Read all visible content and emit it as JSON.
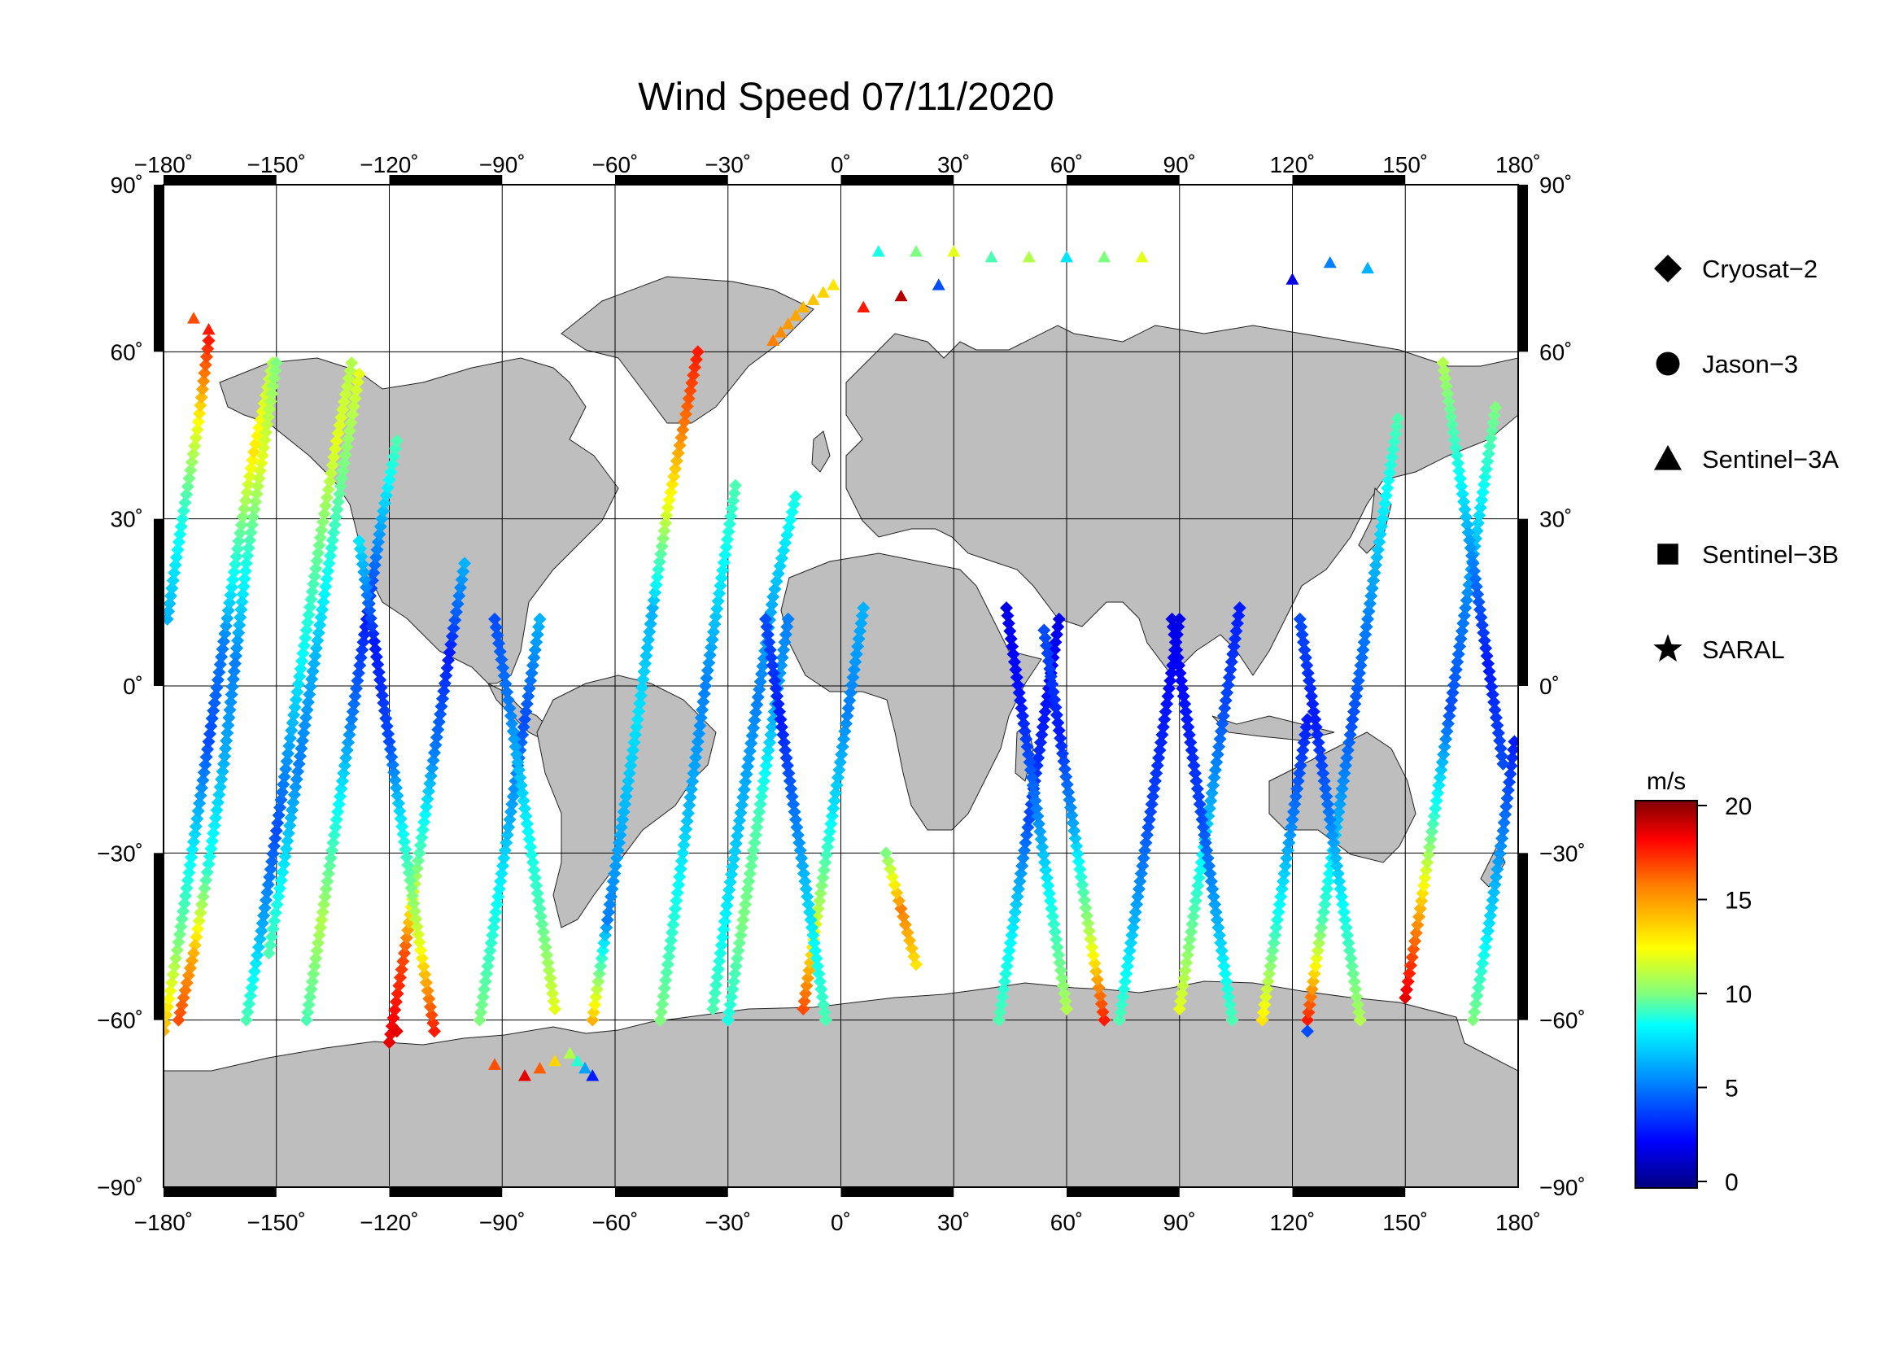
{
  "title": "Wind Speed 07/11/2020",
  "chart_data": {
    "type": "scatter",
    "projection": "equirectangular",
    "variable": "Wind Speed",
    "date": "07/11/2020",
    "x_axis": {
      "range": [
        -180,
        180
      ],
      "ticks": [
        -180,
        -150,
        -120,
        -90,
        -60,
        -30,
        0,
        30,
        60,
        90,
        120,
        150,
        180
      ],
      "tick_labels": [
        "−180˚",
        "−150˚",
        "−120˚",
        "−90˚",
        "−60˚",
        "−30˚",
        "0˚",
        "30˚",
        "60˚",
        "90˚",
        "120˚",
        "150˚",
        "180˚"
      ]
    },
    "y_axis": {
      "range": [
        -90,
        90
      ],
      "ticks": [
        90,
        60,
        30,
        0,
        -30,
        -60,
        -90
      ],
      "tick_labels": [
        "90˚",
        "60˚",
        "30˚",
        "0˚",
        "−30˚",
        "−60˚",
        "−90˚"
      ]
    },
    "grid": true,
    "colorbar": {
      "unit": "m/s",
      "range": [
        0,
        20
      ],
      "ticks": [
        20,
        15,
        10,
        5,
        0
      ],
      "tick_labels": [
        "20",
        "15",
        "10",
        "5",
        "0"
      ],
      "colormap": [
        "#00007f",
        "#0000ff",
        "#007fff",
        "#00ffff",
        "#7fff7f",
        "#ffff00",
        "#ff7f00",
        "#ff0000",
        "#7f0000"
      ]
    },
    "legend": {
      "placement": "right",
      "entries": [
        {
          "name": "Cryosat−2",
          "marker": "diamond"
        },
        {
          "name": "Jason−3",
          "marker": "circle"
        },
        {
          "name": "Sentinel−3A",
          "marker": "triangle"
        },
        {
          "name": "Sentinel−3B",
          "marker": "square"
        },
        {
          "name": "SARAL",
          "marker": "star"
        }
      ]
    },
    "tracks": [
      {
        "marker": "diamond",
        "points": [
          [
            -180,
            -62,
            14
          ],
          [
            -176,
            -46,
            10
          ],
          [
            -172,
            -28,
            7
          ],
          [
            -168,
            -10,
            4
          ],
          [
            -164,
            8,
            5
          ],
          [
            -160,
            26,
            9
          ],
          [
            -156,
            42,
            13
          ],
          [
            -151,
            58,
            11
          ]
        ]
      },
      {
        "marker": "diamond",
        "points": [
          [
            -179,
            12,
            6
          ],
          [
            -175,
            30,
            8
          ],
          [
            -171,
            46,
            12
          ],
          [
            -168,
            62,
            17
          ]
        ]
      },
      {
        "marker": "diamond",
        "points": [
          [
            -150,
            58,
            10
          ],
          [
            -154,
            40,
            12
          ],
          [
            -158,
            22,
            8
          ],
          [
            -161,
            4,
            5
          ],
          [
            -164,
            -14,
            6
          ],
          [
            -168,
            -32,
            8
          ],
          [
            -172,
            -48,
            14
          ],
          [
            -176,
            -60,
            16
          ]
        ]
      },
      {
        "marker": "diamond",
        "points": [
          [
            -158,
            -60,
            9
          ],
          [
            -154,
            -44,
            6
          ],
          [
            -150,
            -26,
            4
          ],
          [
            -146,
            -8,
            6
          ],
          [
            -142,
            10,
            8
          ],
          [
            -138,
            28,
            10
          ],
          [
            -134,
            44,
            12
          ],
          [
            -130,
            58,
            11
          ]
        ]
      },
      {
        "marker": "diamond",
        "points": [
          [
            -142,
            -60,
            9
          ],
          [
            -138,
            -42,
            11
          ],
          [
            -134,
            -24,
            8
          ],
          [
            -130,
            -6,
            5
          ],
          [
            -126,
            12,
            3
          ],
          [
            -122,
            30,
            6
          ],
          [
            -118,
            44,
            9
          ]
        ]
      },
      {
        "marker": "diamond",
        "points": [
          [
            -128,
            56,
            12
          ],
          [
            -132,
            40,
            10
          ],
          [
            -136,
            22,
            8
          ],
          [
            -140,
            4,
            6
          ],
          [
            -144,
            -14,
            5
          ],
          [
            -148,
            -32,
            7
          ],
          [
            -152,
            -48,
            9
          ]
        ]
      },
      {
        "marker": "diamond",
        "points": [
          [
            -120,
            -64,
            18
          ],
          [
            -116,
            -48,
            16
          ],
          [
            -112,
            -30,
            9
          ],
          [
            -108,
            -12,
            5
          ],
          [
            -104,
            6,
            3
          ],
          [
            -100,
            22,
            6
          ]
        ]
      },
      {
        "marker": "diamond",
        "points": [
          [
            -108,
            -62,
            17
          ],
          [
            -112,
            -46,
            12
          ],
          [
            -116,
            -28,
            8
          ],
          [
            -120,
            -10,
            4
          ],
          [
            -124,
            8,
            3
          ],
          [
            -128,
            26,
            7
          ]
        ]
      },
      {
        "marker": "diamond",
        "points": [
          [
            -96,
            -60,
            10
          ],
          [
            -92,
            -42,
            8
          ],
          [
            -88,
            -24,
            6
          ],
          [
            -84,
            -6,
            4
          ],
          [
            -80,
            12,
            6
          ]
        ]
      },
      {
        "marker": "diamond",
        "points": [
          [
            -76,
            -58,
            12
          ],
          [
            -80,
            -40,
            9
          ],
          [
            -84,
            -22,
            7
          ],
          [
            -88,
            -4,
            5
          ],
          [
            -92,
            12,
            4
          ]
        ]
      },
      {
        "marker": "diamond",
        "points": [
          [
            -66,
            -60,
            14
          ],
          [
            -62,
            -42,
            5
          ],
          [
            -58,
            -24,
            6
          ],
          [
            -54,
            -6,
            7
          ],
          [
            -50,
            14,
            6
          ],
          [
            -46,
            32,
            12
          ],
          [
            -42,
            46,
            15
          ],
          [
            -38,
            60,
            17
          ]
        ]
      },
      {
        "marker": "diamond",
        "points": [
          [
            -48,
            -60,
            10
          ],
          [
            -44,
            -40,
            8
          ],
          [
            -40,
            -20,
            6
          ],
          [
            -36,
            0,
            5
          ],
          [
            -32,
            18,
            7
          ],
          [
            -28,
            36,
            9
          ]
        ]
      },
      {
        "marker": "diamond",
        "points": [
          [
            -34,
            -58,
            9
          ],
          [
            -30,
            -38,
            7
          ],
          [
            -26,
            -20,
            6
          ],
          [
            -22,
            -2,
            5
          ],
          [
            -18,
            16,
            6
          ],
          [
            -12,
            34,
            8
          ]
        ]
      },
      {
        "marker": "diamond",
        "points": [
          [
            -30,
            -60,
            8
          ],
          [
            -26,
            -42,
            10
          ],
          [
            -22,
            -24,
            9
          ],
          [
            -18,
            -6,
            6
          ],
          [
            -14,
            12,
            5
          ]
        ]
      },
      {
        "marker": "diamond",
        "points": [
          [
            -10,
            -58,
            16
          ],
          [
            -6,
            -40,
            11
          ],
          [
            -2,
            -22,
            7
          ],
          [
            2,
            -4,
            5
          ],
          [
            6,
            14,
            6
          ]
        ]
      },
      {
        "marker": "diamond",
        "points": [
          [
            -4,
            -60,
            9
          ],
          [
            -8,
            -42,
            7
          ],
          [
            -12,
            -24,
            5
          ],
          [
            -16,
            -6,
            3
          ],
          [
            -20,
            12,
            4
          ]
        ]
      },
      {
        "marker": "diamond",
        "points": [
          [
            20,
            -50,
            13
          ],
          [
            16,
            -40,
            15
          ],
          [
            12,
            -30,
            10
          ]
        ]
      },
      {
        "marker": "diamond",
        "points": [
          [
            42,
            -60,
            9
          ],
          [
            46,
            -42,
            7
          ],
          [
            50,
            -24,
            4
          ],
          [
            54,
            -6,
            3
          ],
          [
            58,
            12,
            2
          ]
        ]
      },
      {
        "marker": "diamond",
        "points": [
          [
            60,
            -58,
            11
          ],
          [
            56,
            -40,
            8
          ],
          [
            52,
            -22,
            5
          ],
          [
            48,
            -4,
            3
          ],
          [
            44,
            14,
            2
          ]
        ]
      },
      {
        "marker": "diamond",
        "points": [
          [
            70,
            -60,
            17
          ],
          [
            66,
            -44,
            11
          ],
          [
            62,
            -26,
            6
          ],
          [
            58,
            -8,
            3
          ],
          [
            54,
            10,
            4
          ]
        ]
      },
      {
        "marker": "diamond",
        "points": [
          [
            74,
            -60,
            9
          ],
          [
            78,
            -42,
            6
          ],
          [
            82,
            -24,
            4
          ],
          [
            86,
            -6,
            3
          ],
          [
            90,
            12,
            2
          ]
        ]
      },
      {
        "marker": "diamond",
        "points": [
          [
            90,
            -58,
            12
          ],
          [
            94,
            -40,
            9
          ],
          [
            98,
            -22,
            6
          ],
          [
            102,
            -4,
            4
          ],
          [
            106,
            14,
            3
          ]
        ]
      },
      {
        "marker": "diamond",
        "points": [
          [
            104,
            -60,
            9
          ],
          [
            100,
            -42,
            6
          ],
          [
            96,
            -24,
            4
          ],
          [
            92,
            -6,
            3
          ],
          [
            88,
            12,
            2
          ]
        ]
      },
      {
        "marker": "diamond",
        "points": [
          [
            112,
            -60,
            13
          ],
          [
            116,
            -42,
            8
          ],
          [
            120,
            -24,
            5
          ],
          [
            124,
            -6,
            3
          ]
        ]
      },
      {
        "marker": "diamond",
        "points": [
          [
            124,
            -60,
            17
          ],
          [
            128,
            -42,
            9
          ],
          [
            132,
            -24,
            6
          ],
          [
            136,
            -6,
            4
          ],
          [
            140,
            12,
            5
          ],
          [
            144,
            30,
            7
          ],
          [
            148,
            48,
            9
          ]
        ]
      },
      {
        "marker": "diamond",
        "points": [
          [
            138,
            -60,
            11
          ],
          [
            134,
            -42,
            8
          ],
          [
            130,
            -24,
            5
          ],
          [
            126,
            -6,
            3
          ],
          [
            122,
            12,
            4
          ]
        ]
      },
      {
        "marker": "diamond",
        "points": [
          [
            150,
            -56,
            18
          ],
          [
            154,
            -40,
            14
          ],
          [
            158,
            -22,
            8
          ],
          [
            162,
            -4,
            4
          ],
          [
            166,
            14,
            5
          ],
          [
            170,
            32,
            7
          ],
          [
            174,
            50,
            10
          ]
        ]
      },
      {
        "marker": "diamond",
        "points": [
          [
            168,
            -60,
            10
          ],
          [
            172,
            -44,
            7
          ],
          [
            176,
            -26,
            5
          ],
          [
            179,
            -10,
            3
          ]
        ]
      },
      {
        "marker": "diamond",
        "points": [
          [
            160,
            58,
            11
          ],
          [
            164,
            40,
            8
          ],
          [
            168,
            22,
            5
          ],
          [
            172,
            4,
            3
          ],
          [
            176,
            -14,
            4
          ]
        ]
      },
      {
        "marker": "triangle",
        "points": [
          [
            -172,
            66,
            16
          ],
          [
            -168,
            64,
            17
          ]
        ]
      },
      {
        "marker": "triangle",
        "points": [
          [
            10,
            78,
            8
          ],
          [
            20,
            78,
            10
          ],
          [
            30,
            78,
            12
          ],
          [
            40,
            77,
            9
          ],
          [
            50,
            77,
            11
          ],
          [
            60,
            77,
            7
          ],
          [
            70,
            77,
            10
          ],
          [
            80,
            77,
            12
          ]
        ]
      },
      {
        "marker": "triangle",
        "points": [
          [
            -2,
            72,
            13
          ],
          [
            -10,
            68,
            14
          ],
          [
            -18,
            62,
            15
          ]
        ]
      },
      {
        "marker": "triangle",
        "points": [
          [
            6,
            68,
            17
          ],
          [
            16,
            70,
            19
          ],
          [
            26,
            72,
            4
          ]
        ]
      },
      {
        "marker": "triangle",
        "points": [
          [
            130,
            76,
            5
          ],
          [
            140,
            75,
            6
          ],
          [
            120,
            73,
            2
          ]
        ]
      },
      {
        "marker": "triangle",
        "points": [
          [
            -92,
            -68,
            16
          ],
          [
            -84,
            -70,
            18
          ],
          [
            -72,
            -66,
            11
          ],
          [
            -66,
            -70,
            3
          ]
        ]
      },
      {
        "marker": "diamond",
        "points": [
          [
            124,
            -62,
            4
          ],
          [
            -118,
            -62,
            18
          ]
        ]
      }
    ]
  }
}
